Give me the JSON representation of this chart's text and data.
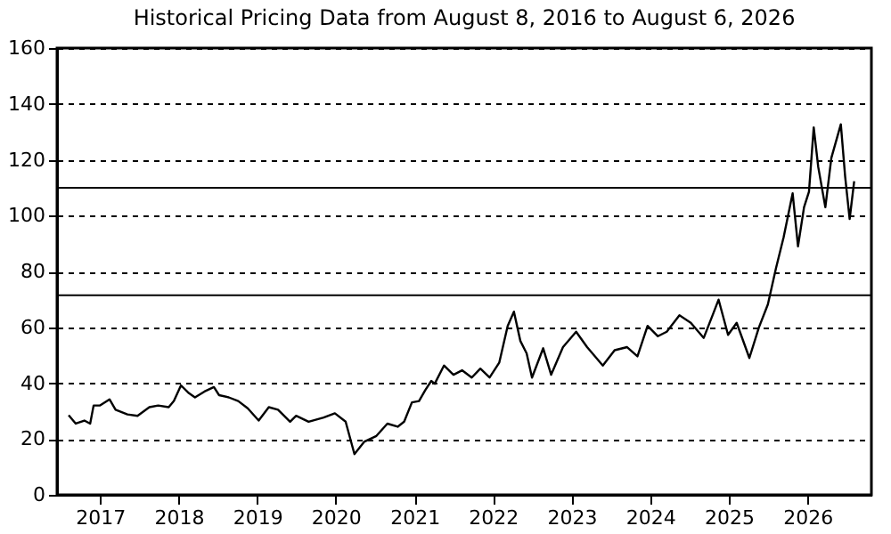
{
  "chart_data": {
    "type": "line",
    "title": "Historical Pricing Data from August 8, 2016 to August 6, 2026",
    "x": [
      "2016-08-08",
      "2016-09-10",
      "2016-10-20",
      "2016-11-16",
      "2016-12-02",
      "2017-01-01",
      "2017-02-14",
      "2017-03-14",
      "2017-05-08",
      "2017-06-24",
      "2017-08-18",
      "2017-09-28",
      "2017-11-16",
      "2017-12-10",
      "2018-01-12",
      "2018-02-18",
      "2018-03-18",
      "2018-05-01",
      "2018-06-14",
      "2018-07-08",
      "2018-08-22",
      "2018-10-05",
      "2018-11-18",
      "2019-01-08",
      "2019-02-24",
      "2019-04-08",
      "2019-06-03",
      "2019-07-01",
      "2019-08-28",
      "2019-11-06",
      "2019-12-28",
      "2020-02-16",
      "2020-03-28",
      "2020-05-12",
      "2020-07-08",
      "2020-08-28",
      "2020-10-15",
      "2020-11-14",
      "2020-12-20",
      "2021-01-22",
      "2021-02-20",
      "2021-03-20",
      "2021-04-05",
      "2021-05-18",
      "2021-07-01",
      "2021-08-10",
      "2021-09-24",
      "2021-11-03",
      "2021-12-16",
      "2022-01-30",
      "2022-03-10",
      "2022-04-08",
      "2022-05-08",
      "2022-06-06",
      "2022-07-01",
      "2022-08-22",
      "2022-09-28",
      "2022-11-22",
      "2023-01-22",
      "2023-03-14",
      "2023-05-26",
      "2023-07-20",
      "2023-09-16",
      "2023-11-03",
      "2023-12-20",
      "2024-02-06",
      "2024-03-18",
      "2024-05-16",
      "2024-07-08",
      "2024-09-06",
      "2024-10-20",
      "2024-11-14",
      "2024-12-28",
      "2025-02-06",
      "2025-04-06",
      "2025-05-20",
      "2025-07-01",
      "2025-08-08",
      "2025-09-12",
      "2025-10-24",
      "2025-11-18",
      "2025-12-16",
      "2026-01-08",
      "2026-01-30",
      "2026-02-20",
      "2026-03-25",
      "2026-04-22",
      "2026-06-05",
      "2026-06-25",
      "2026-07-16",
      "2026-08-06"
    ],
    "series": [
      {
        "color": "#000000",
        "values": [
          28.5,
          25.5,
          26.6,
          25.5,
          32,
          32,
          34.2,
          30.5,
          28.8,
          28.3,
          31.4,
          32,
          31.4,
          33.6,
          39.2,
          36.4,
          34.9,
          37,
          38.6,
          35.7,
          34.9,
          33.6,
          31,
          26.6,
          31.4,
          30.5,
          26.2,
          28.3,
          26.2,
          27.7,
          29.2,
          26.2,
          14.6,
          19,
          21.1,
          25.5,
          24.4,
          26.2,
          33.1,
          33.6,
          37.5,
          40.8,
          39.8,
          46.3,
          43,
          44.6,
          42,
          45.2,
          42,
          47.4,
          60.5,
          65.6,
          55.1,
          50.7,
          42,
          52.5,
          43,
          52.9,
          58.4,
          52.9,
          46.3,
          51.8,
          52.9,
          49.6,
          60.5,
          56.8,
          58.4,
          64.3,
          61.6,
          56.2,
          64.9,
          69.9,
          57.3,
          61.6,
          49,
          59.9,
          68.2,
          81.3,
          92.2,
          108,
          89,
          103,
          108.6,
          131.6,
          117.4,
          103,
          120.7,
          132.7,
          114,
          98.8,
          112.3
        ]
      }
    ],
    "xlim": [
      "2016-06-15",
      "2026-10-25"
    ],
    "xticks": [
      "2017",
      "2018",
      "2019",
      "2020",
      "2021",
      "2022",
      "2023",
      "2024",
      "2025",
      "2026"
    ],
    "ylim": [
      0,
      160
    ],
    "yticks": [
      0,
      20,
      40,
      60,
      80,
      100,
      120,
      140,
      160
    ],
    "grid": "y",
    "line_style": "solid",
    "marker": "none",
    "ref_lines": [
      {
        "axis": "y",
        "value": 110,
        "color": "#000000"
      },
      {
        "axis": "y",
        "value": 71.5,
        "color": "#000000"
      }
    ]
  }
}
